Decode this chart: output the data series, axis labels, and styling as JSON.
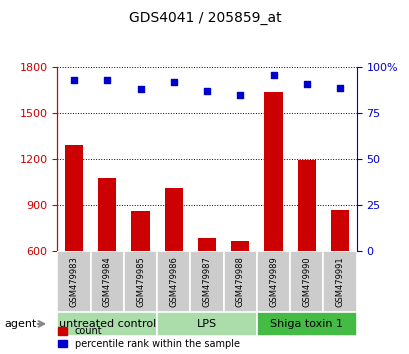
{
  "title": "GDS4041 / 205859_at",
  "samples": [
    "GSM479983",
    "GSM479984",
    "GSM479985",
    "GSM479986",
    "GSM479987",
    "GSM479988",
    "GSM479989",
    "GSM479990",
    "GSM479991"
  ],
  "counts": [
    1290,
    1075,
    865,
    1010,
    685,
    670,
    1640,
    1195,
    870
  ],
  "percentile_ranks": [
    93,
    93,
    88,
    92,
    87,
    85,
    96,
    91,
    89
  ],
  "ylim_left": [
    600,
    1800
  ],
  "ylim_right": [
    0,
    100
  ],
  "yticks_left": [
    600,
    900,
    1200,
    1500,
    1800
  ],
  "yticks_right": [
    0,
    25,
    50,
    75,
    100
  ],
  "bar_color": "#cc0000",
  "dot_color": "#0000cc",
  "bar_bottom": 600,
  "group_data": [
    {
      "label": "untreated control",
      "start": 0,
      "end": 3,
      "color": "#aaddaa"
    },
    {
      "label": "LPS",
      "start": 3,
      "end": 6,
      "color": "#aaddaa"
    },
    {
      "label": "Shiga toxin 1",
      "start": 6,
      "end": 9,
      "color": "#44bb44"
    }
  ],
  "sample_bg": "#cccccc",
  "agent_label": "agent",
  "legend_count_label": "count",
  "legend_pct_label": "percentile rank within the sample",
  "plot_bg": "#ffffff",
  "title_fontsize": 10,
  "tick_fontsize": 8,
  "sample_fontsize": 6,
  "group_fontsize": 8
}
